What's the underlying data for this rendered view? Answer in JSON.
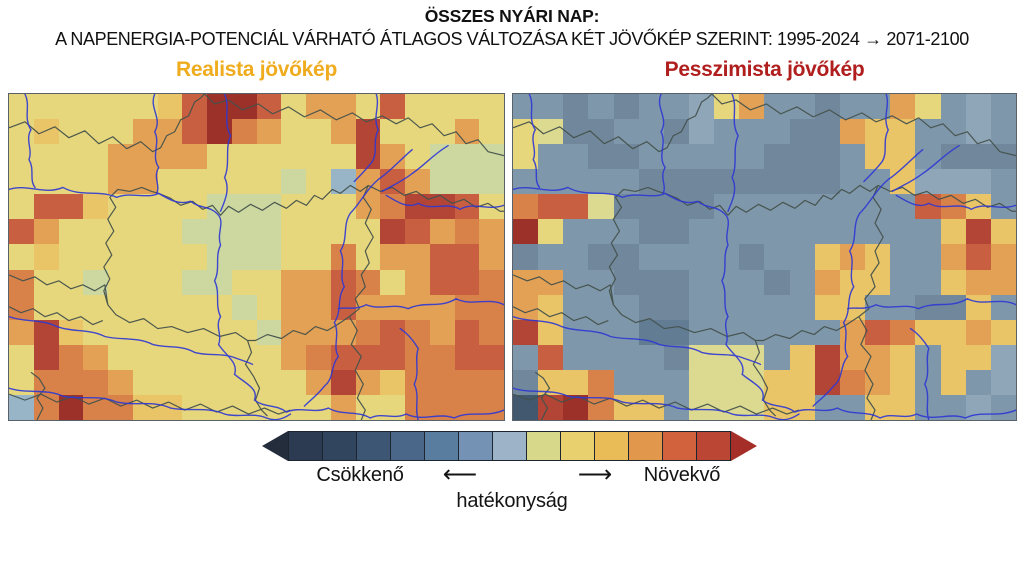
{
  "title": "ÖSSZES NYÁRI NAP:",
  "subtitle": "A NAPENERGIA-POTENCIÁL VÁRHATÓ ÁTLAGOS VÁLTOZÁSA KÉT JÖVŐKÉP SZERINT: 1995-2024 → 2071-2100",
  "panels": [
    {
      "id": "realista",
      "label": "Realista jövőkép",
      "label_color": "#EFAC1E",
      "grid": [
        "8888889ceec8aa8c8888",
        "89888aaceba88ad888a8",
        "8888aaaa888888da8666",
        "8888aa88888685aca666",
        "8cc98888666888abddc8",
        "ca8888866668888dcaba",
        "8988888866688b8aacca",
        "b8868886688aacb8accb",
        "b8888888868aacaaaabb",
        "ad988888886aaabcbacb",
        "8dba8888888abcccbbcc",
        "8bbba8888888ada9bbbb",
        "5bebb99888888a88bbbb"
      ]
    },
    {
      "id": "pesszimista",
      "label": "Pesszimista jövőkép",
      "label_color": "#B01E1E",
      "grid": [
        "332323348a33233a8343",
        "8722332433322a993343",
        "83322333332223993222",
        "33333222222223394443",
        "bcc7222233333333cb93",
        "e83332233333333339d9",
        "2332233332339a933aca",
        "aa3322233323a99339aa",
        "a9333223333399332293",
        "d933311333333acb99a9",
        "3c3333277739daa93994",
        "299b33377799dba93934",
        "fdeb9937779933993343"
      ]
    }
  ],
  "palette": {
    "0": "#5a7288",
    "1": "#617c93",
    "2": "#71889c",
    "3": "#7f97aa",
    "4": "#8ea6b8",
    "5": "#98b5c8",
    "6": "#ccd8a0",
    "7": "#dcda90",
    "8": "#e6d67c",
    "9": "#e9c568",
    "a": "#e3a155",
    "b": "#d8824a",
    "c": "#c95f41",
    "d": "#b24536",
    "e": "#9c3129",
    "f": "#41586f"
  },
  "legend": {
    "tip_left_color": "#242d3b",
    "tip_right_color": "#a52e28",
    "segments": [
      "#2c3b52",
      "#32455e",
      "#3c5674",
      "#4a678a",
      "#597d9f",
      "#7492b3",
      "#9db4c8",
      "#d8d88b",
      "#e9d06f",
      "#e9bc58",
      "#e2984c",
      "#d2623e",
      "#bc4634"
    ],
    "label_decreasing": "Csökkenő",
    "label_increasing": "Növekvő",
    "label_quantity": "hatékonyság",
    "arrow_left": "⟵",
    "arrow_right": "⟶"
  },
  "map_overlay_colors": {
    "border_color": "#44524c",
    "river_color": "#2e38d4"
  }
}
